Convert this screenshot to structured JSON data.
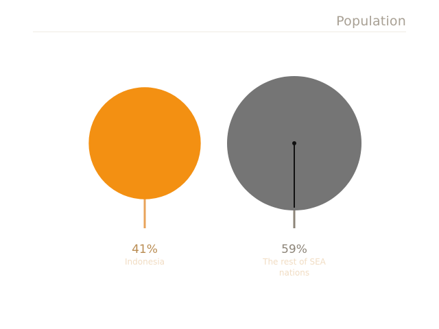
{
  "title": "Population",
  "chart_data": {
    "type": "proportional-circles",
    "title": "Population",
    "items": [
      {
        "label_lines": [
          "Indonesia"
        ],
        "value": 41,
        "value_label": "41%",
        "color": "#f39012",
        "stem_color": "#e8a35a",
        "label_color": "#f1ddc4",
        "value_color": "#b98c52"
      },
      {
        "label_lines": [
          "The rest of SEA",
          "nations"
        ],
        "value": 59,
        "value_label": "59%",
        "color": "#757575",
        "stem_color": "#8c8478",
        "label_color": "#f1ddc4",
        "value_color": "#8c8478"
      }
    ]
  }
}
